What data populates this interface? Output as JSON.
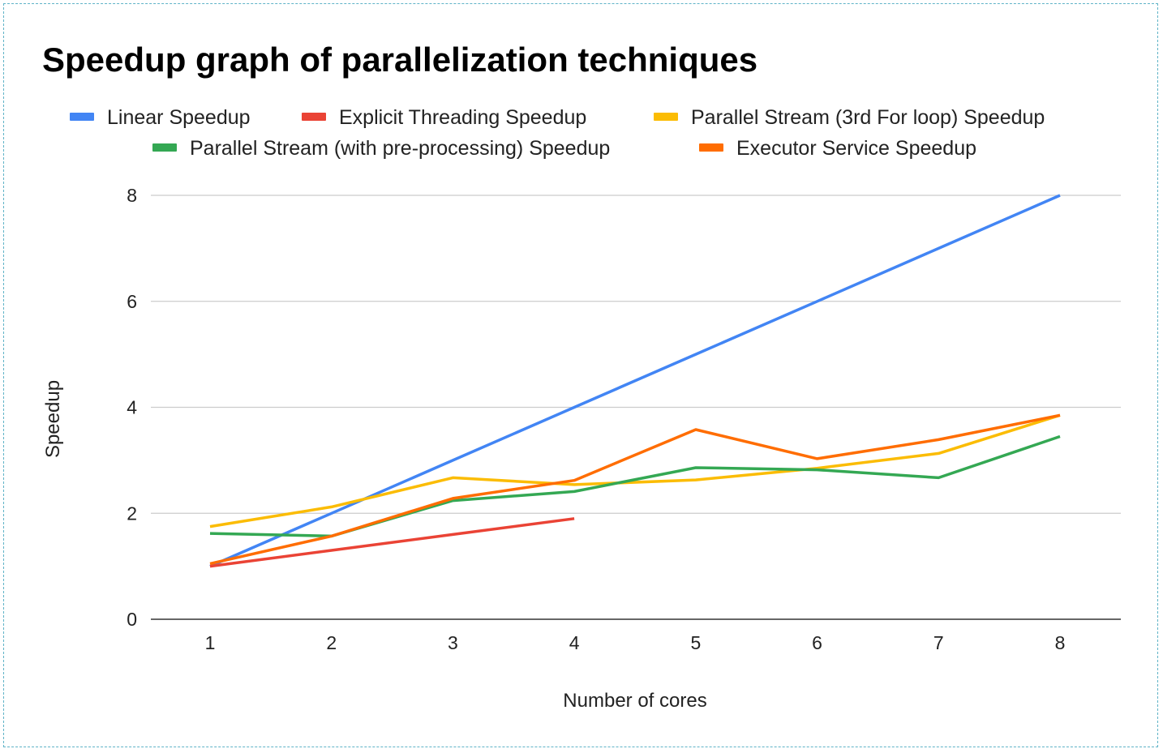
{
  "chart_data": {
    "type": "line",
    "title": "Speedup graph of parallelization techniques",
    "xlabel": "Number of cores",
    "ylabel": "Speedup",
    "x": [
      1,
      2,
      3,
      4,
      5,
      6,
      7,
      8
    ],
    "ylim": [
      0,
      8
    ],
    "yticks": [
      0,
      2,
      4,
      6,
      8
    ],
    "grid": true,
    "legend_position": "top",
    "series": [
      {
        "name": "Linear Speedup",
        "color": "#4285F4",
        "values": [
          1,
          2,
          3,
          4,
          5,
          6,
          7,
          8
        ]
      },
      {
        "name": "Explicit Threading Speedup",
        "color": "#EA4335",
        "values": [
          1.0,
          1.3,
          1.6,
          1.9,
          null,
          null,
          null,
          null
        ]
      },
      {
        "name": "Parallel Stream (3rd For loop) Speedup",
        "color": "#FBBC04",
        "values": [
          1.75,
          2.12,
          2.67,
          2.54,
          2.63,
          2.85,
          3.13,
          3.85
        ]
      },
      {
        "name": "Parallel Stream (with pre-processing) Speedup",
        "color": "#34A853",
        "values": [
          1.62,
          1.57,
          2.24,
          2.41,
          2.86,
          2.82,
          2.67,
          3.45
        ]
      },
      {
        "name": "Executor Service Speedup",
        "color": "#FF6D01",
        "values": [
          1.05,
          1.57,
          2.28,
          2.62,
          3.58,
          3.03,
          3.39,
          3.85
        ]
      }
    ]
  }
}
